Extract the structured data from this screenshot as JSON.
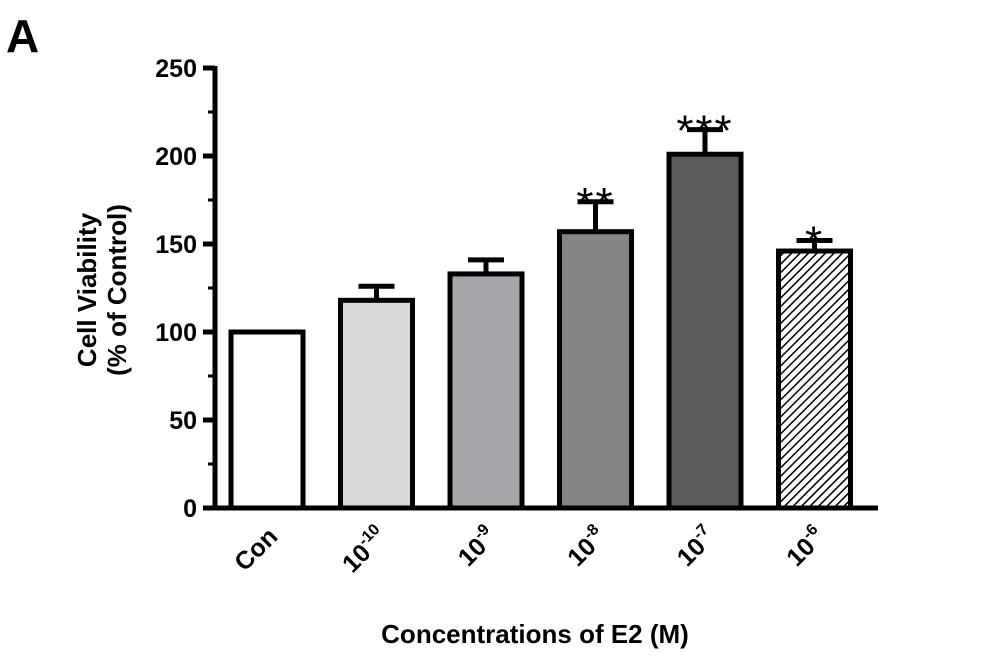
{
  "panel_label": "A",
  "chart_data": {
    "type": "bar",
    "title": "",
    "xlabel": "Concentrations of E2 (M)",
    "ylabel_lines": [
      "Cell Viability",
      "(% of Control)"
    ],
    "ylim": [
      0,
      250
    ],
    "yticks": [
      0,
      50,
      100,
      150,
      200,
      250
    ],
    "categories": [
      {
        "base": "Con",
        "exp": ""
      },
      {
        "base": "10",
        "exp": "-10"
      },
      {
        "base": "10",
        "exp": "-9"
      },
      {
        "base": "10",
        "exp": "-8"
      },
      {
        "base": "10",
        "exp": "-7"
      },
      {
        "base": "10",
        "exp": "-6"
      }
    ],
    "values": [
      100,
      118,
      133,
      157,
      201,
      146
    ],
    "errors": [
      0,
      8,
      8,
      17,
      14,
      6
    ],
    "significance": [
      "",
      "",
      "",
      "**",
      "***",
      "*"
    ],
    "colors": [
      "#ffffff",
      "#d9d9d9",
      "#a6a6aa",
      "#848484",
      "#5c5c5c",
      "hatch"
    ]
  }
}
